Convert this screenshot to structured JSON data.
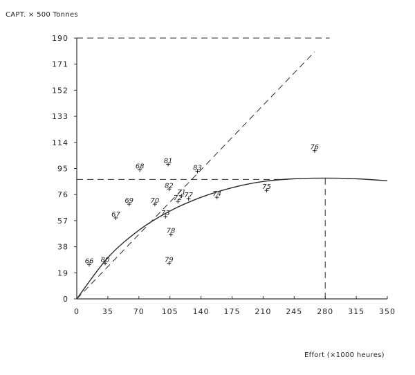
{
  "chart_data": {
    "type": "scatter",
    "title": "",
    "ylabel": "CAPT. × 500 Tonnes",
    "xlabel": "Effort (×1000 heures)",
    "xlim": [
      0,
      350
    ],
    "ylim": [
      0,
      190
    ],
    "x_ticks": [
      0,
      35,
      70,
      105,
      140,
      175,
      210,
      245,
      280,
      315,
      350
    ],
    "y_ticks": [
      0,
      19,
      38,
      57,
      76,
      95,
      114,
      133,
      152,
      171,
      190
    ],
    "grid": false,
    "legend": null,
    "series": [
      {
        "name": "Annual observations (year labels)",
        "type": "scatter",
        "points": [
          {
            "label": "66",
            "x": 14,
            "y": 25
          },
          {
            "label": "67",
            "x": 44,
            "y": 59
          },
          {
            "label": "68",
            "x": 71,
            "y": 94
          },
          {
            "label": "69",
            "x": 59,
            "y": 69
          },
          {
            "label": "70",
            "x": 88,
            "y": 69
          },
          {
            "label": "71",
            "x": 118,
            "y": 75
          },
          {
            "label": "72",
            "x": 114,
            "y": 71
          },
          {
            "label": "73",
            "x": 100,
            "y": 60
          },
          {
            "label": "74",
            "x": 158,
            "y": 74
          },
          {
            "label": "75",
            "x": 214,
            "y": 79
          },
          {
            "label": "76",
            "x": 268,
            "y": 108
          },
          {
            "label": "77",
            "x": 126,
            "y": 73
          },
          {
            "label": "78",
            "x": 106,
            "y": 47
          },
          {
            "label": "79",
            "x": 104,
            "y": 26
          },
          {
            "label": "80",
            "x": 32,
            "y": 26
          },
          {
            "label": "81",
            "x": 103,
            "y": 98
          },
          {
            "label": "82",
            "x": 104,
            "y": 80
          },
          {
            "label": "83",
            "x": 136,
            "y": 93
          }
        ]
      },
      {
        "name": "Fitted production curve",
        "type": "line",
        "style": "solid",
        "x": [
          0,
          35,
          70,
          105,
          140,
          175,
          210,
          245,
          280,
          315,
          350
        ],
        "y": [
          0,
          30,
          50,
          64,
          74,
          81,
          85.5,
          87.5,
          88,
          87.5,
          86
        ]
      },
      {
        "name": "Initial slope line",
        "type": "line",
        "style": "dashed",
        "x": [
          0,
          268
        ],
        "y": [
          0,
          180
        ]
      },
      {
        "name": "Maximum (MSY) horizontal",
        "type": "line",
        "style": "dashed",
        "x": [
          0,
          230
        ],
        "y": [
          87,
          87
        ]
      },
      {
        "name": "Optimum effort vertical",
        "type": "line",
        "style": "dashed",
        "x": [
          280,
          280
        ],
        "y": [
          0,
          88
        ]
      },
      {
        "name": "Upper reference line",
        "type": "line",
        "style": "dashed",
        "x": [
          0,
          285
        ],
        "y": [
          190,
          190
        ]
      }
    ],
    "annotations": {
      "msy_catch": 87,
      "optimal_effort": 280
    }
  }
}
